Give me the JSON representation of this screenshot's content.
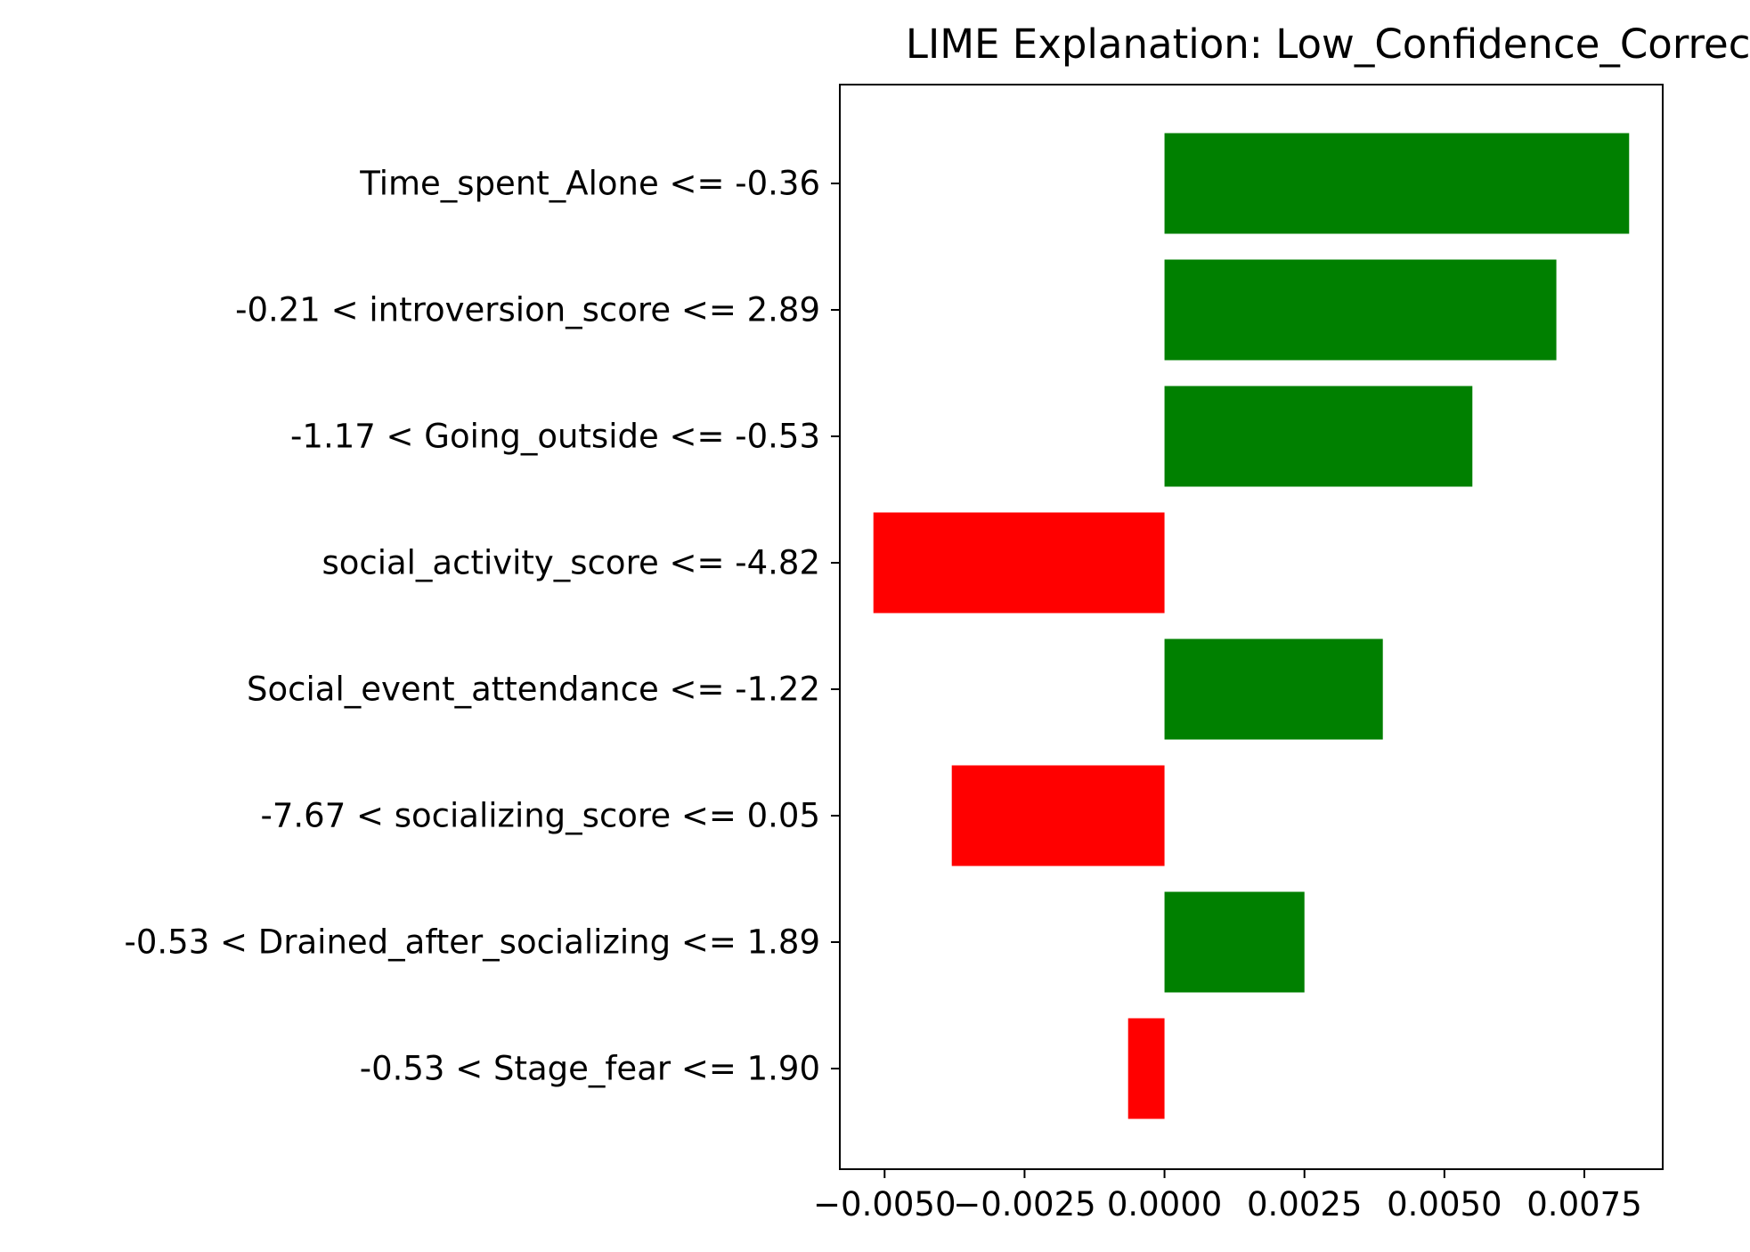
{
  "chart_data": {
    "type": "bar",
    "orientation": "horizontal",
    "title": "LIME Explanation: Low_Confidence_Correct",
    "xlabel": "",
    "ylabel": "",
    "categories": [
      "Time_spent_Alone <= -0.36",
      "-0.21 < introversion_score <= 2.89",
      "-1.17 < Going_outside <= -0.53",
      "social_activity_score <= -4.82",
      "Social_event_attendance <= -1.22",
      "-7.67 < socializing_score <= 0.05",
      "-0.53 < Drained_after_socializing <= 1.89",
      "-0.53 < Stage_fear <= 1.90"
    ],
    "values": [
      0.0083,
      0.007,
      0.0055,
      -0.0052,
      0.0039,
      -0.0038,
      0.0025,
      -0.00065
    ],
    "xlim": [
      -0.0058,
      0.0089
    ],
    "xticks": [
      -0.005,
      -0.0025,
      0.0,
      0.0025,
      0.005,
      0.0075
    ],
    "xtick_labels": [
      "−0.0050",
      "−0.0025",
      "0.0000",
      "0.0025",
      "0.0050",
      "0.0075"
    ],
    "colors": {
      "positive": "#008000",
      "negative": "#ff0000",
      "axis": "#000000",
      "background": "#ffffff"
    },
    "grid": false,
    "legend": "none"
  }
}
